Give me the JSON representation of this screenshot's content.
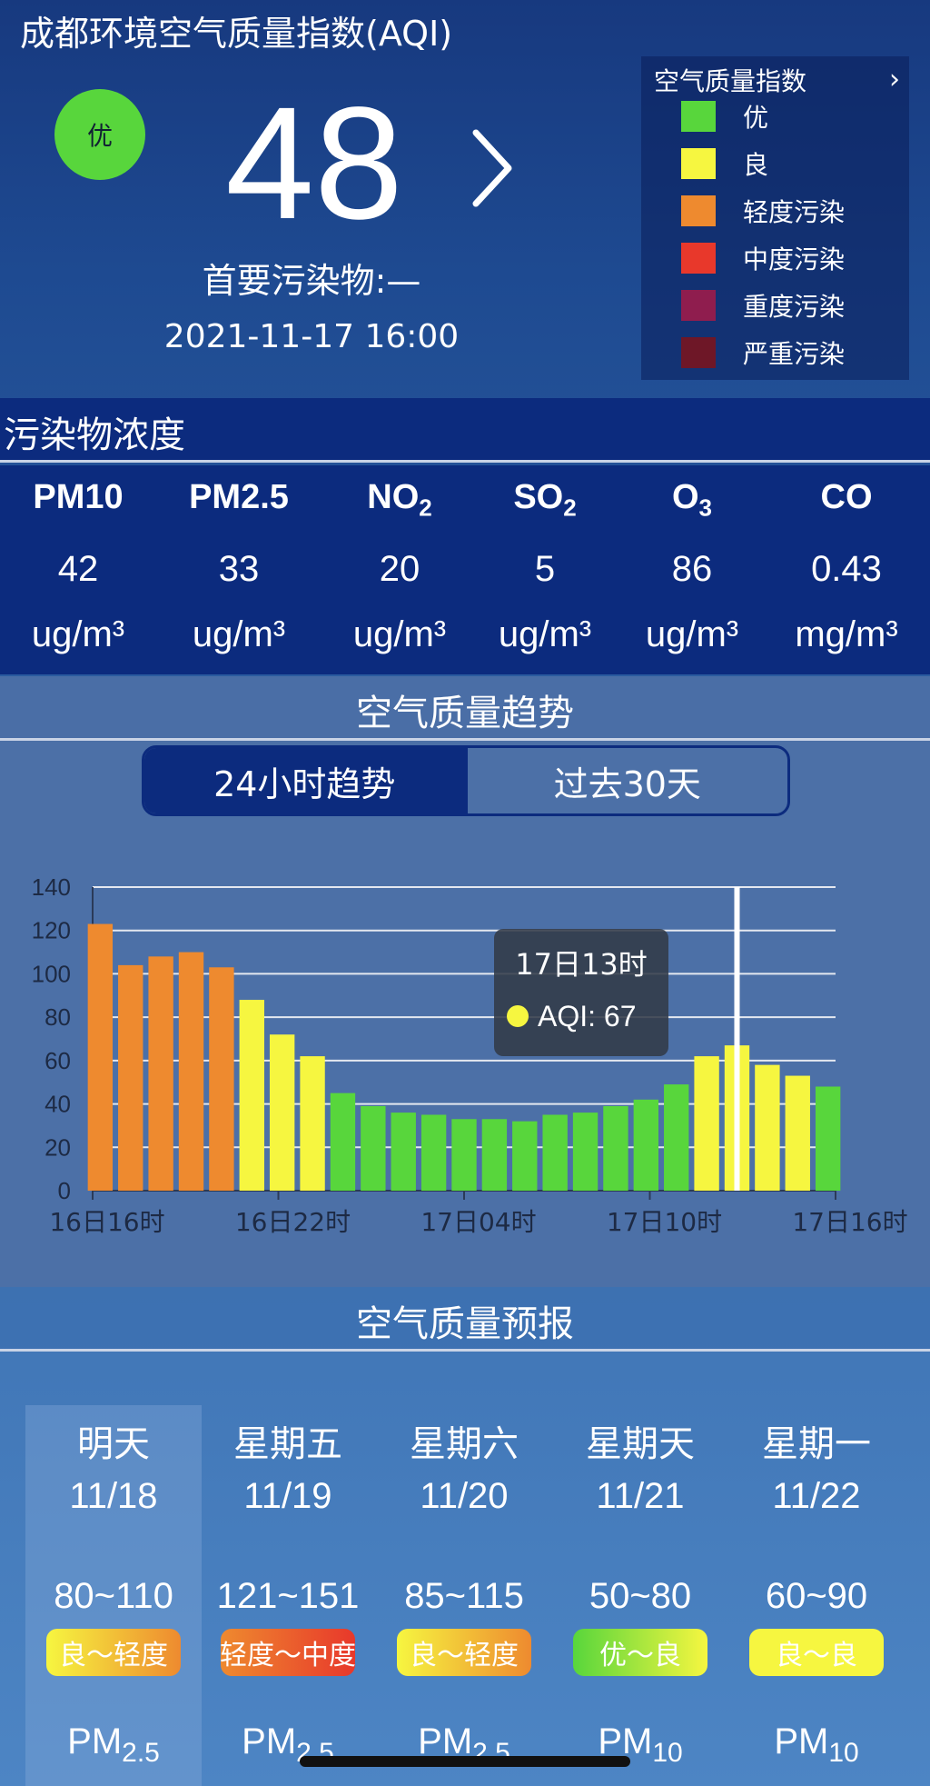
{
  "header": {
    "title": "成都环境空气质量指数(AQI)",
    "aqi_value": "48",
    "level": "优",
    "level_color": "#58d63c",
    "primary_pollutant": "首要污染物:—",
    "update_time": "2021-11-17 16:00"
  },
  "legend": {
    "title": "空气质量指数",
    "items": [
      {
        "label": "优",
        "color": "#58d63c"
      },
      {
        "label": "良",
        "color": "#f6f640"
      },
      {
        "label": "轻度污染",
        "color": "#ee8a2f"
      },
      {
        "label": "中度污染",
        "color": "#e8382b"
      },
      {
        "label": "重度污染",
        "color": "#8f1d4e"
      },
      {
        "label": "严重污染",
        "color": "#6e1727"
      }
    ]
  },
  "pollutants": {
    "section_title": "污染物浓度",
    "items": [
      {
        "name": "PM10",
        "sub": "",
        "value": "42",
        "unit": "ug/m³"
      },
      {
        "name": "PM2.5",
        "sub": "",
        "value": "33",
        "unit": "ug/m³"
      },
      {
        "name": "NO",
        "sub": "2",
        "value": "20",
        "unit": "ug/m³"
      },
      {
        "name": "SO",
        "sub": "2",
        "value": "5",
        "unit": "ug/m³"
      },
      {
        "name": "O",
        "sub": "3",
        "value": "86",
        "unit": "ug/m³"
      },
      {
        "name": "CO",
        "sub": "",
        "value": "0.43",
        "unit": "mg/m³"
      }
    ]
  },
  "trend": {
    "section_title": "空气质量趋势",
    "tabs": [
      {
        "label": "24小时趋势",
        "active": true
      },
      {
        "label": "过去30天",
        "active": false
      }
    ]
  },
  "chart_data": {
    "type": "bar",
    "ylim": [
      0,
      140
    ],
    "yticks": [
      0,
      20,
      40,
      60,
      80,
      100,
      120,
      140
    ],
    "x_tick_labels": [
      "16日16时",
      "16日22时",
      "17日04时",
      "17日10时",
      "17日16时"
    ],
    "x_tick_indices": [
      0,
      6,
      12,
      18,
      24
    ],
    "values": [
      123,
      104,
      108,
      110,
      103,
      88,
      72,
      62,
      45,
      39,
      36,
      35,
      33,
      33,
      32,
      35,
      36,
      39,
      42,
      49,
      62,
      67,
      58,
      53,
      48
    ],
    "selected_index": 21,
    "tooltip": {
      "title": "17日13时",
      "label": "AQI: 67"
    },
    "grid": true,
    "colors": {
      "good": "#58d63c",
      "moderate": "#f6f640",
      "light": "#ee8a2f"
    }
  },
  "forecast": {
    "section_title": "空气质量预报",
    "days": [
      {
        "day": "明天",
        "date": "11/18",
        "range": "80~110",
        "level": "良～轻度",
        "grad": [
          "#f6f640",
          "#ee8a2f"
        ],
        "pollutant": "PM",
        "sub": "2.5"
      },
      {
        "day": "星期五",
        "date": "11/19",
        "range": "121~151",
        "level": "轻度～中度",
        "grad": [
          "#ee8a2f",
          "#e8382b"
        ],
        "pollutant": "PM",
        "sub": "2.5"
      },
      {
        "day": "星期六",
        "date": "11/20",
        "range": "85~115",
        "level": "良～轻度",
        "grad": [
          "#f6f640",
          "#ee8a2f"
        ],
        "pollutant": "PM",
        "sub": "2.5"
      },
      {
        "day": "星期天",
        "date": "11/21",
        "range": "50~80",
        "level": "优～良",
        "grad": [
          "#58d63c",
          "#f6f640"
        ],
        "pollutant": "PM",
        "sub": "10"
      },
      {
        "day": "星期一",
        "date": "11/22",
        "range": "60~90",
        "level": "良～良",
        "grad": [
          "#f6f640",
          "#f6f640"
        ],
        "pollutant": "PM",
        "sub": "10"
      }
    ]
  }
}
